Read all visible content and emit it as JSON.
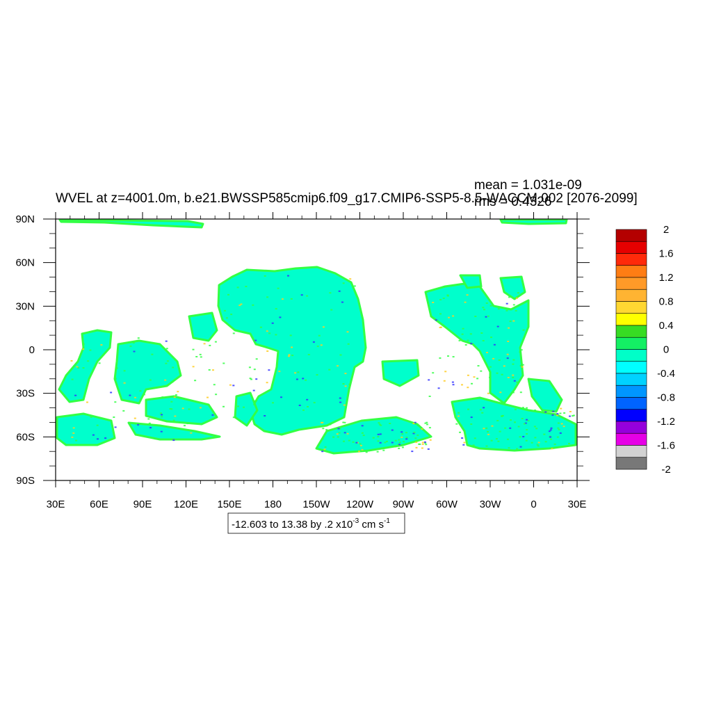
{
  "title": "WVEL at z=4001.0m, b.e21.BWSSP585cmip6.f09_g17.CMIP6-SSP5-8.5-WACCM.002 [2076-2099]",
  "stats": {
    "mean": "mean = 1.031e-09",
    "rms": "rms = 0.4326"
  },
  "axes": {
    "x_tick_labels": [
      "30E",
      "60E",
      "90E",
      "120E",
      "150E",
      "180",
      "150W",
      "120W",
      "90W",
      "60W",
      "30W",
      "0",
      "30E"
    ],
    "y_tick_labels": [
      "90N",
      "60N",
      "30N",
      "0",
      "30S",
      "60S",
      "90S"
    ]
  },
  "contour_info": {
    "prefix": "-12.603 to 13.38 by .2 x10",
    "exponent": "-3",
    "unit": " cm s",
    "unit_exponent": "-1"
  },
  "colorbar": {
    "labels": [
      "2",
      "1.6",
      "1.2",
      "0.8",
      "0.4",
      "0",
      "-0.4",
      "-0.8",
      "-1.2",
      "-1.6",
      "-2"
    ],
    "colors": [
      "#b40000",
      "#e60000",
      "#ff2a0a",
      "#ff7d14",
      "#ff9a28",
      "#ffb432",
      "#ffd732",
      "#ffff00",
      "#37dc23",
      "#14f064",
      "#00ffc8",
      "#00ffff",
      "#00d2ff",
      "#0096ff",
      "#0064ff",
      "#0000ff",
      "#9600dc",
      "#e600e6",
      "#d2d2d2",
      "#787878"
    ]
  },
  "map_colors": {
    "ocean": "#00ffcc",
    "positive": "#33ff44",
    "accent_hot": "#ffcc22",
    "accent_cold": "#3333ff",
    "land": "#ffffff"
  }
}
